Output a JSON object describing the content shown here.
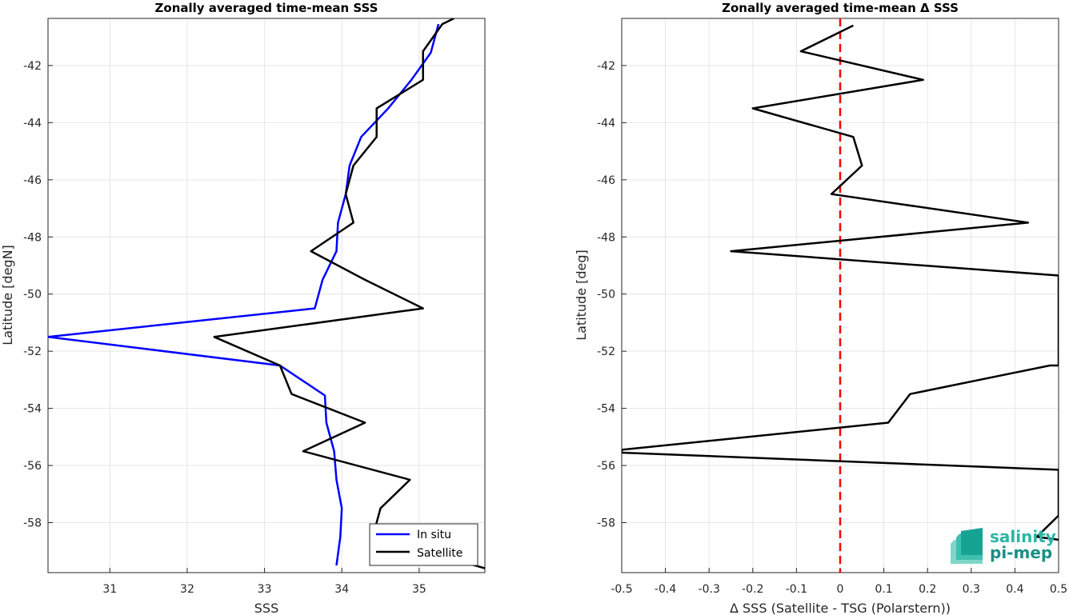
{
  "chart_data": [
    {
      "type": "line",
      "title": "Zonally averaged time-mean SSS",
      "xlabel": "SSS",
      "ylabel": "Latitude [degN]",
      "xlim": [
        30.2,
        35.85
      ],
      "ylim": [
        -59.75,
        -40.35
      ],
      "x_ticks": [
        31,
        32,
        33,
        34,
        35
      ],
      "y_ticks": [
        -42,
        -44,
        -46,
        -48,
        -50,
        -52,
        -54,
        -56,
        -58
      ],
      "grid": true,
      "legend_position": "bottom-right",
      "series": [
        {
          "name": "In situ",
          "color": "#0000ff",
          "points": [
            [
              35.25,
              -40.55
            ],
            [
              35.15,
              -41.55
            ],
            [
              34.9,
              -42.5
            ],
            [
              34.6,
              -43.5
            ],
            [
              34.25,
              -44.5
            ],
            [
              34.1,
              -45.5
            ],
            [
              34.05,
              -46.5
            ],
            [
              33.95,
              -47.5
            ],
            [
              33.93,
              -48.5
            ],
            [
              33.75,
              -49.5
            ],
            [
              33.65,
              -50.5
            ],
            [
              30.2,
              -51.5
            ],
            [
              33.2,
              -52.5
            ],
            [
              33.78,
              -53.55
            ],
            [
              33.8,
              -54.5
            ],
            [
              33.9,
              -55.5
            ],
            [
              33.93,
              -56.5
            ],
            [
              34.0,
              -57.5
            ],
            [
              33.98,
              -58.5
            ],
            [
              33.93,
              -59.5
            ]
          ]
        },
        {
          "name": "Satellite",
          "color": "#000000",
          "points": [
            [
              35.45,
              -40.35
            ],
            [
              35.3,
              -40.55
            ],
            [
              35.05,
              -41.5
            ],
            [
              35.05,
              -42.5
            ],
            [
              34.45,
              -43.5
            ],
            [
              34.45,
              -44.5
            ],
            [
              34.15,
              -45.5
            ],
            [
              34.05,
              -46.5
            ],
            [
              34.15,
              -47.5
            ],
            [
              33.6,
              -48.5
            ],
            [
              34.3,
              -49.5
            ],
            [
              35.05,
              -50.5
            ],
            [
              32.35,
              -51.5
            ],
            [
              33.2,
              -52.5
            ],
            [
              33.35,
              -53.5
            ],
            [
              34.3,
              -54.5
            ],
            [
              33.5,
              -55.5
            ],
            [
              34.88,
              -56.5
            ],
            [
              34.5,
              -57.5
            ],
            [
              34.4,
              -58.5
            ],
            [
              35.85,
              -59.6
            ]
          ]
        }
      ]
    },
    {
      "type": "line",
      "title": "Zonally averaged time-mean Δ SSS",
      "xlabel": "Δ SSS (Satellite - TSG (Polarstern))",
      "ylabel": "Latitude [deg]",
      "xlim": [
        -0.5,
        0.5
      ],
      "ylim": [
        -59.75,
        -40.35
      ],
      "x_ticks": [
        -0.5,
        -0.4,
        -0.3,
        -0.2,
        -0.1,
        0,
        0.1,
        0.2,
        0.3,
        0.4,
        0.5
      ],
      "y_ticks": [
        -42,
        -44,
        -46,
        -48,
        -50,
        -52,
        -54,
        -56,
        -58
      ],
      "grid": true,
      "reference_line": {
        "x": 0,
        "color": "#ff0000",
        "style": "dashed"
      },
      "series": [
        {
          "color": "#000000",
          "points": [
            [
              0.03,
              -40.6
            ],
            [
              -0.09,
              -41.5
            ],
            [
              0.19,
              -42.5
            ],
            [
              -0.2,
              -43.5
            ],
            [
              0.03,
              -44.5
            ],
            [
              0.05,
              -45.5
            ],
            [
              -0.02,
              -46.5
            ],
            [
              0.43,
              -47.5
            ],
            [
              -0.25,
              -48.5
            ],
            [
              0.5,
              -49.35
            ],
            [
              0.5,
              -52.5
            ],
            [
              0.48,
              -52.5
            ],
            [
              0.16,
              -53.5
            ],
            [
              0.11,
              -54.5
            ],
            [
              -0.5,
              -55.45
            ],
            [
              -0.5,
              -55.55
            ],
            [
              0.5,
              -56.15
            ],
            [
              0.5,
              -57.75
            ],
            [
              0.45,
              -58.5
            ],
            [
              0.5,
              -58.6
            ]
          ]
        }
      ]
    }
  ],
  "logo": {
    "line1": "salinity",
    "line2": "pi-mep",
    "color1": "#2ab5a5",
    "color2": "#1a8f85"
  }
}
